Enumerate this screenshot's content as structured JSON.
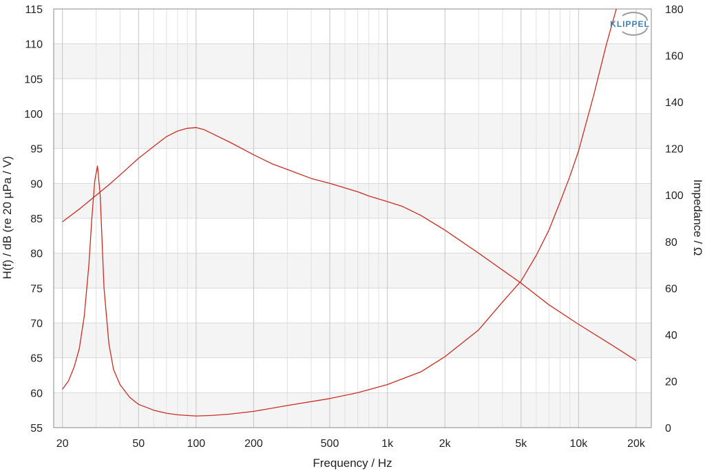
{
  "chart_data": {
    "type": "line",
    "xlabel": "Frequency / Hz",
    "ylabel_left": "H(f) / dB (re 20 µPa / V)",
    "ylabel_right": "Impedance / Ω",
    "x_scale": "log",
    "xlim": [
      18,
      24000
    ],
    "ylim_left": [
      55,
      115
    ],
    "ylim_right": [
      0,
      180
    ],
    "x_ticks": [
      20,
      50,
      100,
      200,
      500,
      1000,
      2000,
      5000,
      10000,
      20000
    ],
    "x_tick_labels": [
      "20",
      "50",
      "100",
      "200",
      "500",
      "1k",
      "2k",
      "5k",
      "10k",
      "20k"
    ],
    "y_ticks_left": [
      55,
      60,
      65,
      70,
      75,
      80,
      85,
      90,
      95,
      100,
      105,
      110,
      115
    ],
    "y_ticks_right": [
      0,
      20,
      40,
      60,
      80,
      100,
      120,
      140,
      160,
      180
    ],
    "grid": true,
    "logo": "KLIPPEL",
    "series": [
      {
        "color": "#cc2a1f",
        "axis": "left",
        "x": [
          20,
          25,
          30,
          35,
          40,
          50,
          60,
          70,
          80,
          90,
          100,
          110,
          120,
          150,
          200,
          250,
          300,
          400,
          500,
          700,
          800,
          1000,
          1200,
          1500,
          2000,
          3000,
          5000,
          7000,
          10000,
          15000,
          20000
        ],
        "y": [
          84.5,
          86.5,
          88.3,
          89.8,
          91.2,
          93.6,
          95.3,
          96.7,
          97.5,
          97.9,
          98.0,
          97.7,
          97.2,
          95.9,
          94.1,
          92.8,
          92.0,
          90.7,
          90.0,
          88.8,
          88.2,
          87.4,
          86.7,
          85.4,
          83.3,
          80.0,
          75.7,
          72.6,
          69.8,
          66.8,
          64.6
        ]
      },
      {
        "color": "#cc2a1f",
        "axis": "right",
        "x": [
          20,
          21.5,
          23,
          24.5,
          26,
          27.5,
          28.5,
          29.5,
          30.5,
          31.5,
          33,
          35,
          37,
          40,
          45,
          50,
          60,
          70,
          80,
          90,
          100,
          120,
          150,
          200,
          300,
          500,
          700,
          1000,
          1500,
          2000,
          3000,
          4000,
          5000,
          6000,
          7000,
          8000,
          9000,
          10000,
          12000,
          14000,
          16000
        ],
        "y": [
          16.5,
          20,
          26,
          34,
          48,
          70,
          90,
          106,
          112.5,
          100,
          60,
          36,
          25,
          18.5,
          13,
          10,
          7.5,
          6.2,
          5.5,
          5.2,
          5.0,
          5.2,
          5.8,
          7.0,
          9.5,
          12.5,
          15.0,
          18.5,
          24.0,
          30.5,
          42.0,
          54.0,
          63.0,
          74.0,
          85.0,
          97.0,
          108.0,
          119.0,
          143.0,
          165.0,
          182.0
        ]
      }
    ]
  }
}
